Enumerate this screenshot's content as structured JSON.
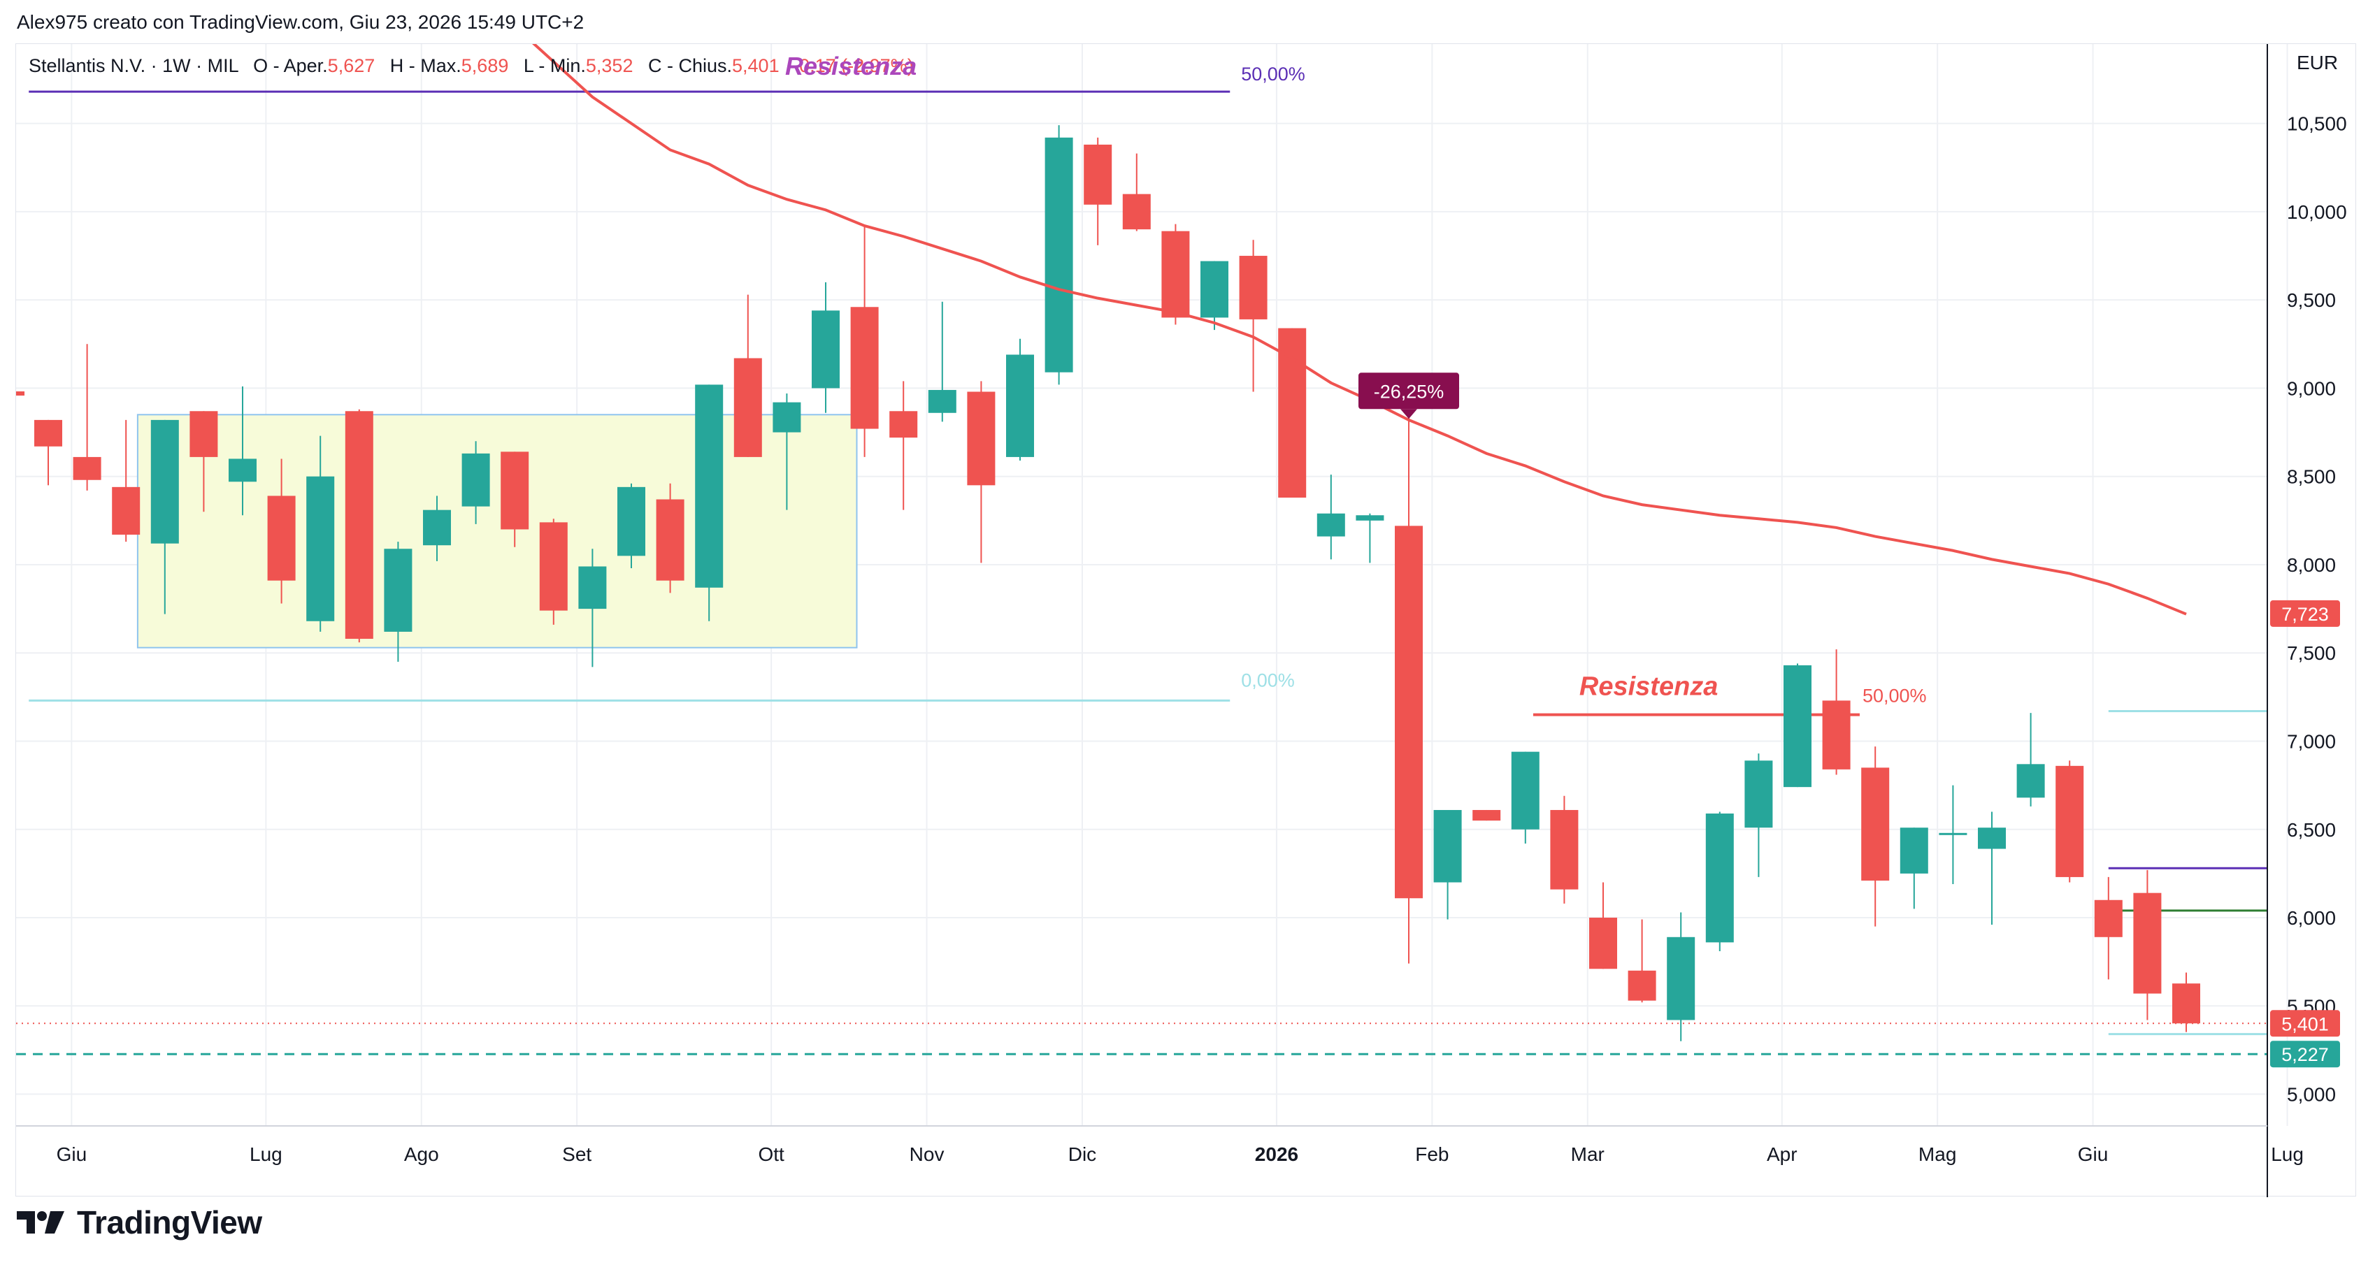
{
  "header": {
    "credit": "Alex975 creato con TradingView.com, Giu 23, 2026 15:49 UTC+2"
  },
  "legend": {
    "symbol": "Stellantis N.V. · 1W · MIL",
    "o_label": "O - Aper.",
    "o_value": "5,627",
    "h_label": "H - Max.",
    "h_value": "5,689",
    "l_label": "L - Min.",
    "l_value": "5,352",
    "c_label": "C - Chius.",
    "c_value": "5,401",
    "change_partial": "-0,17 (-2,97%)"
  },
  "currency": "EUR",
  "brand": {
    "name": "TradingView",
    "icon": "tradingview-logo-icon"
  },
  "colors": {
    "up": "#26a69a",
    "down": "#ef5350",
    "ma": "#ef5350",
    "fib_top": "#5b2fb5",
    "fib_zero": "#9ee0e6",
    "range_fill": "#f7fbd9",
    "range_border": "#8fc4ee",
    "dashed_support": "#26a69a",
    "callout_bg": "#880e4f",
    "resist_label_1": "#ab47bc",
    "resist_label_2": "#ef5350"
  },
  "annotations": {
    "resistance_top": "Resistenza",
    "resistance_bottom": "Resistenza",
    "fib50_top": "50,00%",
    "fib0_top": "0,00%",
    "fib50_bottom": "50,00%",
    "drop_callout": "-26,25%"
  },
  "price_labels": {
    "ma_last": "7,723",
    "last_close": "5,401",
    "support": "5,227"
  },
  "chart_data": {
    "type": "candlestick",
    "timeframe": "1W",
    "ylim": [
      4.82,
      10.95
    ],
    "y_ticks": [
      {
        "v": 5.0,
        "label": "5,000"
      },
      {
        "v": 5.5,
        "label": "5,500"
      },
      {
        "v": 6.0,
        "label": "6,000"
      },
      {
        "v": 6.5,
        "label": "6,500"
      },
      {
        "v": 7.0,
        "label": "7,000"
      },
      {
        "v": 7.5,
        "label": "7,500"
      },
      {
        "v": 8.0,
        "label": "8,000"
      },
      {
        "v": 8.5,
        "label": "8,500"
      },
      {
        "v": 9.0,
        "label": "9,000"
      },
      {
        "v": 9.5,
        "label": "9,500"
      },
      {
        "v": 10.0,
        "label": "10,000"
      },
      {
        "v": 10.5,
        "label": "10,500"
      }
    ],
    "x_ticks": [
      {
        "i": 0.6,
        "label": "Giu",
        "bold": false
      },
      {
        "i": 5.6,
        "label": "Lug",
        "bold": false
      },
      {
        "i": 9.6,
        "label": "Ago",
        "bold": false
      },
      {
        "i": 13.6,
        "label": "Set",
        "bold": false
      },
      {
        "i": 18.6,
        "label": "Ott",
        "bold": false
      },
      {
        "i": 22.6,
        "label": "Nov",
        "bold": false
      },
      {
        "i": 26.6,
        "label": "Dic",
        "bold": false
      },
      {
        "i": 31.6,
        "label": "2026",
        "bold": true
      },
      {
        "i": 35.6,
        "label": "Feb",
        "bold": false
      },
      {
        "i": 39.6,
        "label": "Mar",
        "bold": false
      },
      {
        "i": 44.6,
        "label": "Apr",
        "bold": false
      },
      {
        "i": 48.6,
        "label": "Mag",
        "bold": false
      },
      {
        "i": 52.6,
        "label": "Giu",
        "bold": false
      },
      {
        "i": 57.6,
        "label": "Lug",
        "bold": false
      }
    ],
    "candles": [
      {
        "o": 8.82,
        "h": 8.82,
        "l": 8.45,
        "c": 8.67
      },
      {
        "o": 8.61,
        "h": 9.25,
        "l": 8.42,
        "c": 8.48
      },
      {
        "o": 8.44,
        "h": 8.82,
        "l": 8.13,
        "c": 8.17
      },
      {
        "o": 8.12,
        "h": 8.82,
        "l": 7.72,
        "c": 8.82
      },
      {
        "o": 8.87,
        "h": 8.87,
        "l": 8.3,
        "c": 8.61
      },
      {
        "o": 8.47,
        "h": 9.01,
        "l": 8.28,
        "c": 8.6
      },
      {
        "o": 8.39,
        "h": 8.6,
        "l": 7.78,
        "c": 7.91
      },
      {
        "o": 7.68,
        "h": 8.73,
        "l": 7.62,
        "c": 8.5
      },
      {
        "o": 8.87,
        "h": 8.88,
        "l": 7.56,
        "c": 7.58
      },
      {
        "o": 7.62,
        "h": 8.13,
        "l": 7.45,
        "c": 8.09
      },
      {
        "o": 8.11,
        "h": 8.39,
        "l": 8.02,
        "c": 8.31
      },
      {
        "o": 8.33,
        "h": 8.7,
        "l": 8.23,
        "c": 8.63
      },
      {
        "o": 8.64,
        "h": 8.64,
        "l": 8.1,
        "c": 8.2
      },
      {
        "o": 8.24,
        "h": 8.26,
        "l": 7.66,
        "c": 7.74
      },
      {
        "o": 7.75,
        "h": 8.09,
        "l": 7.42,
        "c": 7.99
      },
      {
        "o": 8.05,
        "h": 8.46,
        "l": 7.98,
        "c": 8.44
      },
      {
        "o": 8.37,
        "h": 8.46,
        "l": 7.84,
        "c": 7.91
      },
      {
        "o": 7.87,
        "h": 9.02,
        "l": 7.68,
        "c": 9.02
      },
      {
        "o": 9.17,
        "h": 9.53,
        "l": 8.61,
        "c": 8.61
      },
      {
        "o": 8.75,
        "h": 8.97,
        "l": 8.31,
        "c": 8.92
      },
      {
        "o": 9.0,
        "h": 9.6,
        "l": 8.86,
        "c": 9.44
      },
      {
        "o": 9.46,
        "h": 9.92,
        "l": 8.61,
        "c": 8.77
      },
      {
        "o": 8.87,
        "h": 9.04,
        "l": 8.31,
        "c": 8.72
      },
      {
        "o": 8.86,
        "h": 9.49,
        "l": 8.81,
        "c": 8.99
      },
      {
        "o": 8.98,
        "h": 9.04,
        "l": 8.01,
        "c": 8.45
      },
      {
        "o": 8.61,
        "h": 9.28,
        "l": 8.59,
        "c": 9.19
      },
      {
        "o": 9.09,
        "h": 10.49,
        "l": 9.02,
        "c": 10.42
      },
      {
        "o": 10.38,
        "h": 10.42,
        "l": 9.81,
        "c": 10.04
      },
      {
        "o": 10.1,
        "h": 10.33,
        "l": 9.89,
        "c": 9.9
      },
      {
        "o": 9.89,
        "h": 9.93,
        "l": 9.36,
        "c": 9.4
      },
      {
        "o": 9.4,
        "h": 9.72,
        "l": 9.33,
        "c": 9.72
      },
      {
        "o": 9.75,
        "h": 9.84,
        "l": 8.98,
        "c": 9.39
      },
      {
        "o": 9.34,
        "h": 9.34,
        "l": 8.38,
        "c": 8.38
      },
      {
        "o": 8.16,
        "h": 8.51,
        "l": 8.03,
        "c": 8.29
      },
      {
        "o": 8.25,
        "h": 8.29,
        "l": 8.01,
        "c": 8.28
      },
      {
        "o": 8.22,
        "h": 8.85,
        "l": 5.74,
        "c": 6.11
      },
      {
        "o": 6.2,
        "h": 6.61,
        "l": 5.99,
        "c": 6.61
      },
      {
        "o": 6.61,
        "h": 6.61,
        "l": 6.55,
        "c": 6.55
      },
      {
        "o": 6.5,
        "h": 6.94,
        "l": 6.42,
        "c": 6.94
      },
      {
        "o": 6.61,
        "h": 6.69,
        "l": 6.08,
        "c": 6.16
      },
      {
        "o": 6.0,
        "h": 6.2,
        "l": 5.71,
        "c": 5.71
      },
      {
        "o": 5.7,
        "h": 5.99,
        "l": 5.52,
        "c": 5.53
      },
      {
        "o": 5.42,
        "h": 6.03,
        "l": 5.3,
        "c": 5.89
      },
      {
        "o": 5.86,
        "h": 6.6,
        "l": 5.81,
        "c": 6.59
      },
      {
        "o": 6.51,
        "h": 6.93,
        "l": 6.23,
        "c": 6.89
      },
      {
        "o": 6.74,
        "h": 7.44,
        "l": 6.74,
        "c": 7.43
      },
      {
        "o": 7.23,
        "h": 7.52,
        "l": 6.81,
        "c": 6.84
      },
      {
        "o": 6.85,
        "h": 6.97,
        "l": 5.95,
        "c": 6.21
      },
      {
        "o": 6.25,
        "h": 6.51,
        "l": 6.05,
        "c": 6.51
      },
      {
        "o": 6.48,
        "h": 6.75,
        "l": 6.19,
        "c": 6.48
      },
      {
        "o": 6.39,
        "h": 6.6,
        "l": 5.96,
        "c": 6.51
      },
      {
        "o": 6.68,
        "h": 7.16,
        "l": 6.63,
        "c": 6.87
      },
      {
        "o": 6.86,
        "h": 6.89,
        "l": 6.2,
        "c": 6.23
      },
      {
        "o": 6.1,
        "h": 6.23,
        "l": 5.65,
        "c": 5.89
      },
      {
        "o": 6.14,
        "h": 6.27,
        "l": 5.42,
        "c": 5.57
      },
      {
        "o": 5.627,
        "h": 5.689,
        "l": 5.352,
        "c": 5.401
      }
    ],
    "moving_average": [
      {
        "i": 12,
        "v": 11.05
      },
      {
        "i": 14,
        "v": 10.65
      },
      {
        "i": 16,
        "v": 10.35
      },
      {
        "i": 17,
        "v": 10.27
      },
      {
        "i": 18,
        "v": 10.15
      },
      {
        "i": 19,
        "v": 10.07
      },
      {
        "i": 20,
        "v": 10.01
      },
      {
        "i": 21,
        "v": 9.92
      },
      {
        "i": 22,
        "v": 9.86
      },
      {
        "i": 23,
        "v": 9.79
      },
      {
        "i": 24,
        "v": 9.72
      },
      {
        "i": 25,
        "v": 9.63
      },
      {
        "i": 26,
        "v": 9.56
      },
      {
        "i": 27,
        "v": 9.51
      },
      {
        "i": 28,
        "v": 9.47
      },
      {
        "i": 29,
        "v": 9.43
      },
      {
        "i": 30,
        "v": 9.37
      },
      {
        "i": 31,
        "v": 9.29
      },
      {
        "i": 32,
        "v": 9.17
      },
      {
        "i": 33,
        "v": 9.03
      },
      {
        "i": 34,
        "v": 8.93
      },
      {
        "i": 35,
        "v": 8.82
      },
      {
        "i": 36,
        "v": 8.73
      },
      {
        "i": 37,
        "v": 8.63
      },
      {
        "i": 38,
        "v": 8.56
      },
      {
        "i": 39,
        "v": 8.47
      },
      {
        "i": 40,
        "v": 8.39
      },
      {
        "i": 41,
        "v": 8.34
      },
      {
        "i": 42,
        "v": 8.31
      },
      {
        "i": 43,
        "v": 8.28
      },
      {
        "i": 44,
        "v": 8.26
      },
      {
        "i": 45,
        "v": 8.24
      },
      {
        "i": 46,
        "v": 8.21
      },
      {
        "i": 47,
        "v": 8.16
      },
      {
        "i": 48,
        "v": 8.12
      },
      {
        "i": 49,
        "v": 8.08
      },
      {
        "i": 50,
        "v": 8.03
      },
      {
        "i": 51,
        "v": 7.99
      },
      {
        "i": 52,
        "v": 7.95
      },
      {
        "i": 53,
        "v": 7.89
      },
      {
        "i": 54,
        "v": 7.81
      },
      {
        "i": 55,
        "v": 7.72
      }
    ],
    "range_box": {
      "i0": 2.3,
      "i1": 20.8,
      "top": 8.85,
      "bottom": 7.53
    },
    "fib_top_line": {
      "i0": -0.5,
      "i1": 30.4,
      "v": 10.68
    },
    "fib_zero_line": {
      "i0": -0.5,
      "i1": 30.4,
      "v": 7.23
    },
    "resistance_segment": {
      "i0": 38.2,
      "i1": 46.6,
      "v": 7.15
    },
    "support_level": 5.227,
    "last_price_level": 5.401,
    "right_lines": [
      {
        "i0": 53.0,
        "i1": 57.4,
        "v": 7.17,
        "color": "#9ee0e6"
      },
      {
        "i0": 53.0,
        "i1": 57.4,
        "v": 6.28,
        "color": "#5b2fb5"
      },
      {
        "i0": 53.0,
        "i1": 57.4,
        "v": 6.04,
        "color": "#2e7d32"
      },
      {
        "i0": 53.0,
        "i1": 57.4,
        "v": 5.34,
        "color": "#9ee0e6"
      }
    ]
  }
}
